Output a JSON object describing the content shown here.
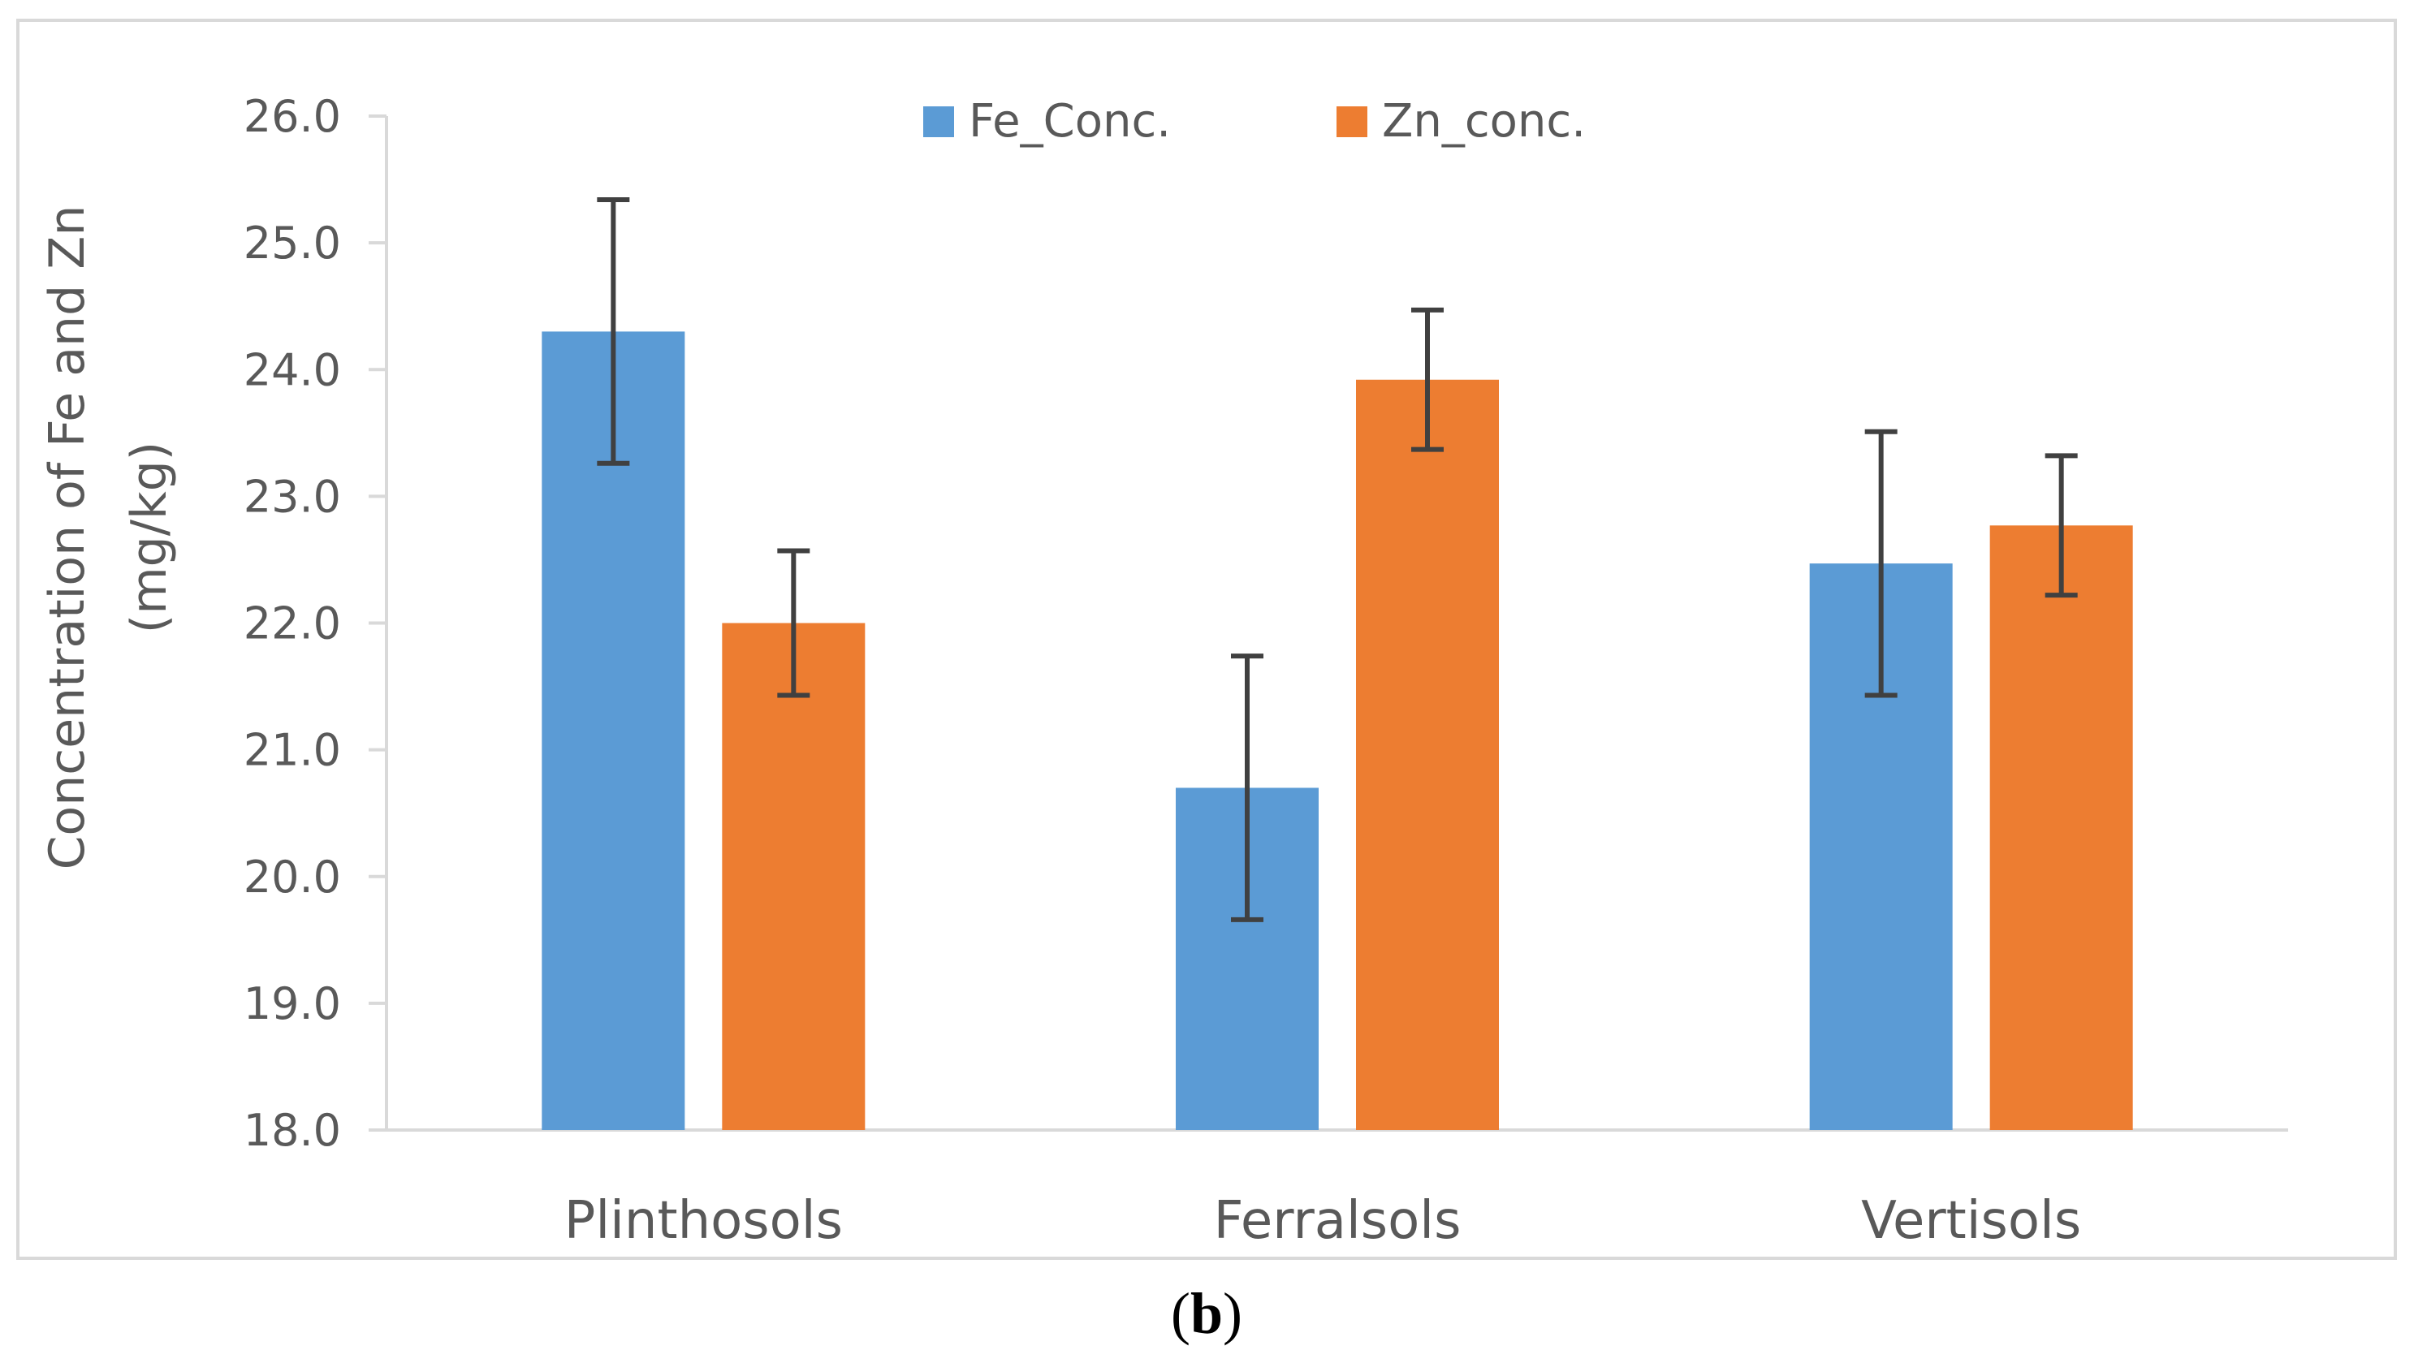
{
  "colors": {
    "fe": "#5B9BD5",
    "zn": "#ED7D31",
    "axis": "#D9D9D9",
    "error_bar": "#404040",
    "frame": "#D9D9D9"
  },
  "caption": {
    "open": "(",
    "letter": "b",
    "close": ")"
  },
  "chart_data": {
    "type": "bar",
    "categories": [
      "Plinthosols",
      "Ferralsols",
      "Vertisols"
    ],
    "series": [
      {
        "name": "Fe_Conc.",
        "values": [
          24.3,
          20.7,
          22.47
        ],
        "error": [
          1.04,
          1.04,
          1.04
        ]
      },
      {
        "name": "Zn_conc.",
        "values": [
          22.0,
          23.92,
          22.77
        ],
        "error": [
          0.57,
          0.55,
          0.55
        ]
      }
    ],
    "ylabel_line1": "Concentration of Fe and Zn",
    "ylabel_line2": "(mg/kg)",
    "xlabel": "",
    "ylim": [
      18.0,
      26.0
    ],
    "yticks": [
      "18.0",
      "19.0",
      "20.0",
      "21.0",
      "22.0",
      "23.0",
      "24.0",
      "25.0",
      "26.0"
    ],
    "legend_position": "top-center",
    "grid": false
  }
}
